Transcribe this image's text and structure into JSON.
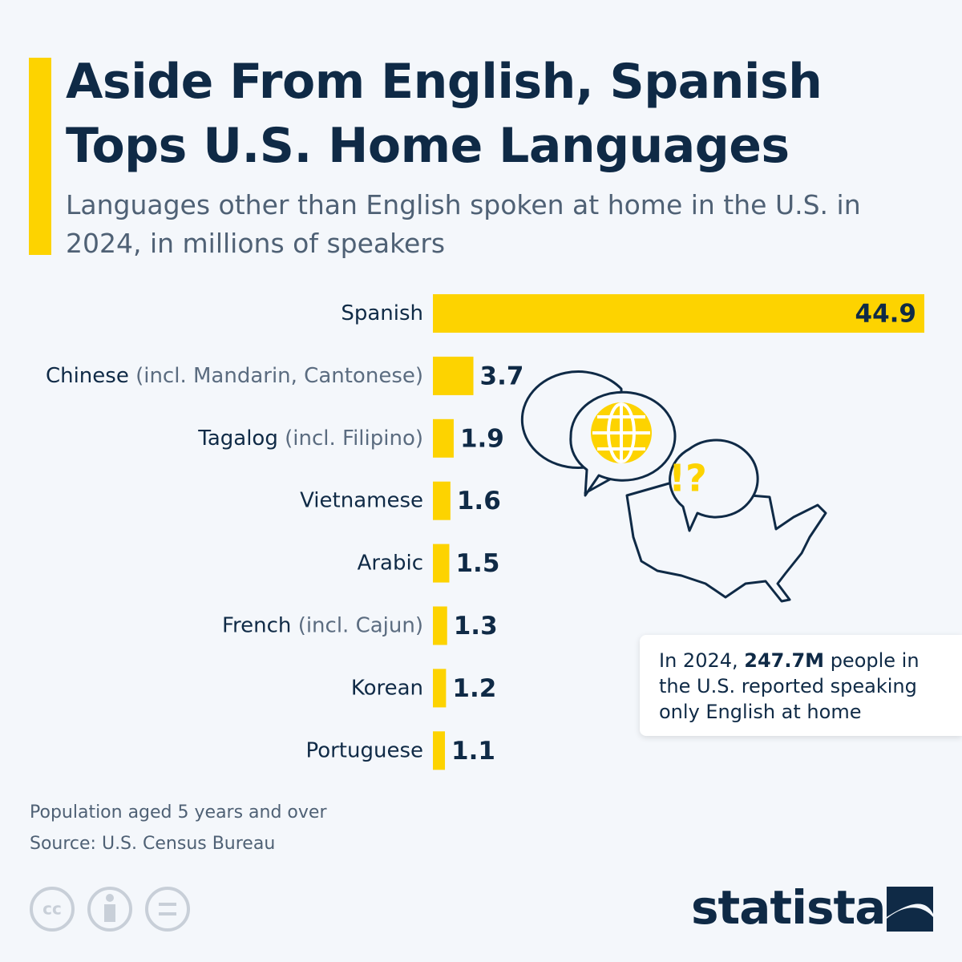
{
  "chart_data": {
    "type": "bar",
    "orientation": "horizontal",
    "title": "Aside From English, Spanish Tops U.S. Home Languages",
    "subtitle": "Languages other than English spoken at home in the U.S. in 2024, in millions of speakers",
    "categories": [
      "Spanish",
      "Chinese",
      "Tagalog",
      "Vietnamese",
      "Arabic",
      "French",
      "Korean",
      "Portuguese"
    ],
    "category_notes": [
      null,
      "(incl. Mandarin, Cantonese)",
      "(incl. Filipino)",
      null,
      null,
      "(incl. Cajun)",
      null,
      null
    ],
    "values": [
      44.9,
      3.7,
      1.9,
      1.6,
      1.5,
      1.3,
      1.2,
      1.1
    ],
    "color": "#fdd300",
    "annotation": {
      "before": "In 2024, ",
      "bold": "247.7M",
      "after": " people in the U.S. reported speaking only English at home"
    },
    "notes": [
      "Population aged 5 years and over",
      "Source: U.S. Census Bureau"
    ],
    "brand": "statista"
  }
}
